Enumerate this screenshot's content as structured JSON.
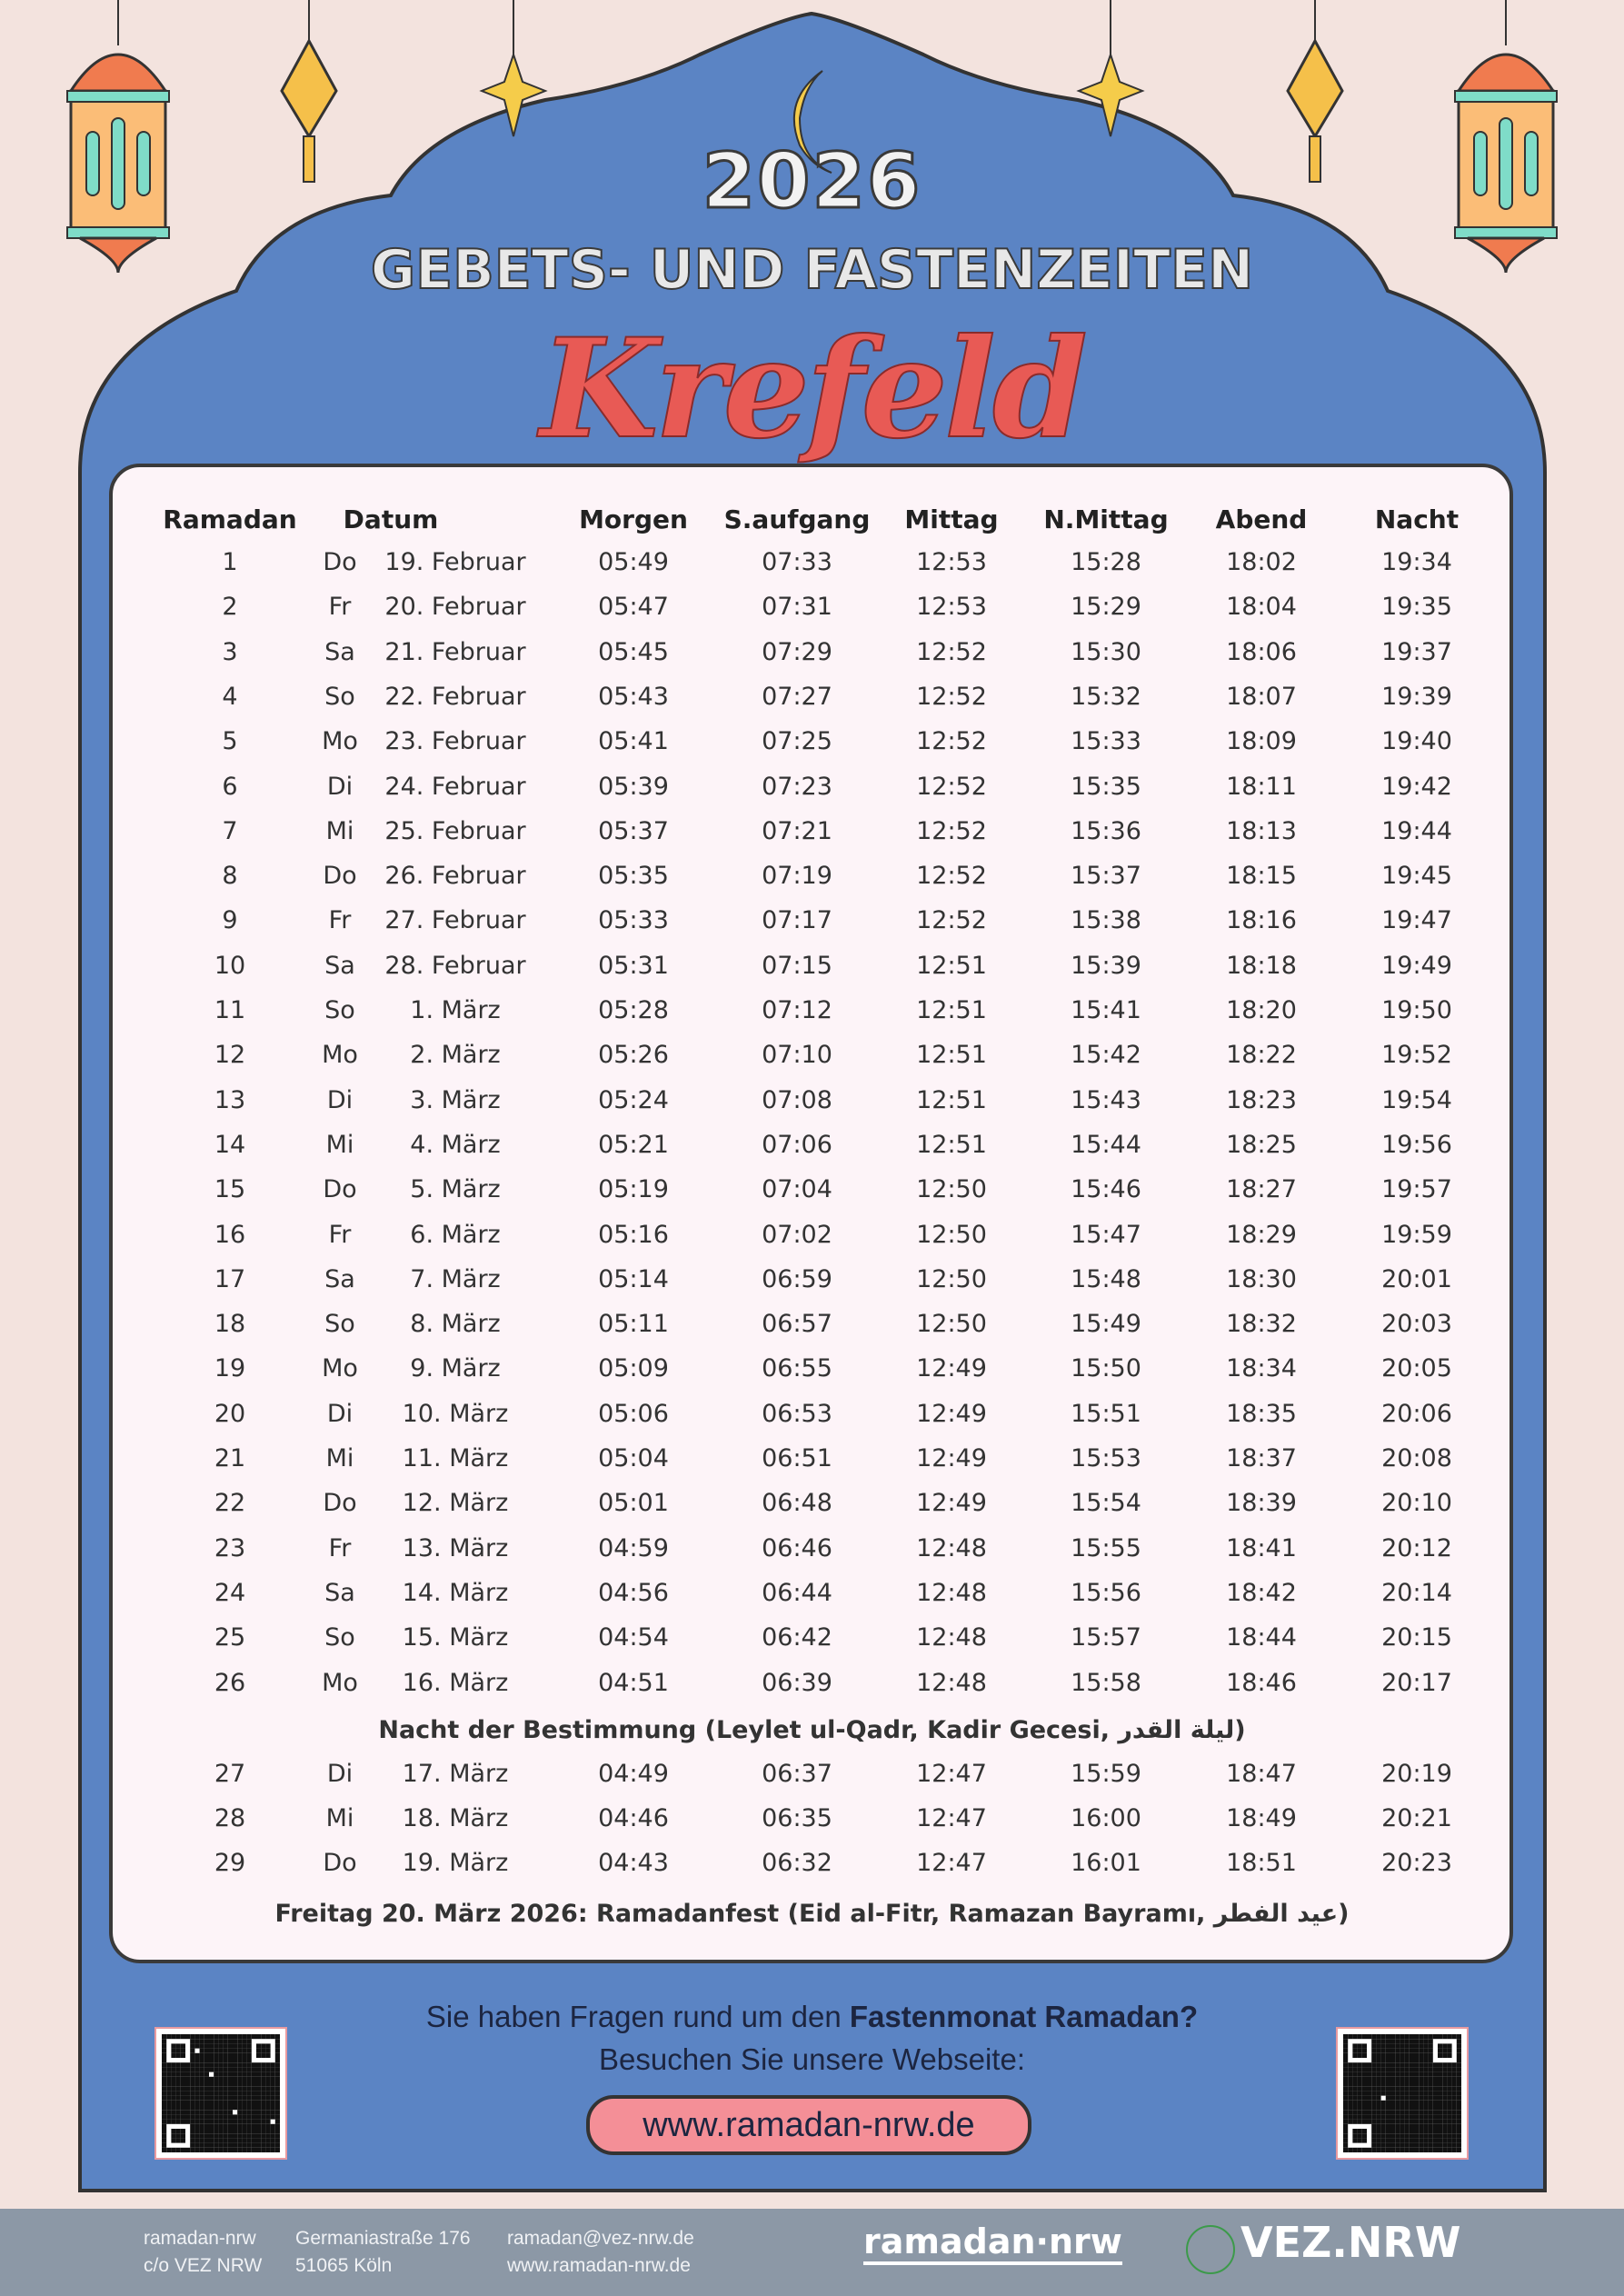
{
  "header": {
    "year": "2026",
    "title": "GEBETS- UND FASTENZEITEN",
    "city": "Krefeld"
  },
  "colors": {
    "background": "#f3e3de",
    "arch_blue": "#5b84c4",
    "city_red": "#e85a55",
    "url_button": "#f48f97",
    "footer": "#8c98a6"
  },
  "table": {
    "columns": [
      "Ramadan",
      "Datum",
      "Morgen",
      "S.aufgang",
      "Mittag",
      "N.Mittag",
      "Abend",
      "Nacht"
    ],
    "rows": [
      [
        "1",
        "Do",
        "19. Februar",
        "05:49",
        "07:33",
        "12:53",
        "15:28",
        "18:02",
        "19:34"
      ],
      [
        "2",
        "Fr",
        "20. Februar",
        "05:47",
        "07:31",
        "12:53",
        "15:29",
        "18:04",
        "19:35"
      ],
      [
        "3",
        "Sa",
        "21. Februar",
        "05:45",
        "07:29",
        "12:52",
        "15:30",
        "18:06",
        "19:37"
      ],
      [
        "4",
        "So",
        "22. Februar",
        "05:43",
        "07:27",
        "12:52",
        "15:32",
        "18:07",
        "19:39"
      ],
      [
        "5",
        "Mo",
        "23. Februar",
        "05:41",
        "07:25",
        "12:52",
        "15:33",
        "18:09",
        "19:40"
      ],
      [
        "6",
        "Di",
        "24. Februar",
        "05:39",
        "07:23",
        "12:52",
        "15:35",
        "18:11",
        "19:42"
      ],
      [
        "7",
        "Mi",
        "25. Februar",
        "05:37",
        "07:21",
        "12:52",
        "15:36",
        "18:13",
        "19:44"
      ],
      [
        "8",
        "Do",
        "26. Februar",
        "05:35",
        "07:19",
        "12:52",
        "15:37",
        "18:15",
        "19:45"
      ],
      [
        "9",
        "Fr",
        "27. Februar",
        "05:33",
        "07:17",
        "12:52",
        "15:38",
        "18:16",
        "19:47"
      ],
      [
        "10",
        "Sa",
        "28. Februar",
        "05:31",
        "07:15",
        "12:51",
        "15:39",
        "18:18",
        "19:49"
      ],
      [
        "11",
        "So",
        "1. März",
        "05:28",
        "07:12",
        "12:51",
        "15:41",
        "18:20",
        "19:50"
      ],
      [
        "12",
        "Mo",
        "2. März",
        "05:26",
        "07:10",
        "12:51",
        "15:42",
        "18:22",
        "19:52"
      ],
      [
        "13",
        "Di",
        "3. März",
        "05:24",
        "07:08",
        "12:51",
        "15:43",
        "18:23",
        "19:54"
      ],
      [
        "14",
        "Mi",
        "4. März",
        "05:21",
        "07:06",
        "12:51",
        "15:44",
        "18:25",
        "19:56"
      ],
      [
        "15",
        "Do",
        "5. März",
        "05:19",
        "07:04",
        "12:50",
        "15:46",
        "18:27",
        "19:57"
      ],
      [
        "16",
        "Fr",
        "6. März",
        "05:16",
        "07:02",
        "12:50",
        "15:47",
        "18:29",
        "19:59"
      ],
      [
        "17",
        "Sa",
        "7. März",
        "05:14",
        "06:59",
        "12:50",
        "15:48",
        "18:30",
        "20:01"
      ],
      [
        "18",
        "So",
        "8. März",
        "05:11",
        "06:57",
        "12:50",
        "15:49",
        "18:32",
        "20:03"
      ],
      [
        "19",
        "Mo",
        "9. März",
        "05:09",
        "06:55",
        "12:49",
        "15:50",
        "18:34",
        "20:05"
      ],
      [
        "20",
        "Di",
        "10. März",
        "05:06",
        "06:53",
        "12:49",
        "15:51",
        "18:35",
        "20:06"
      ],
      [
        "21",
        "Mi",
        "11. März",
        "05:04",
        "06:51",
        "12:49",
        "15:53",
        "18:37",
        "20:08"
      ],
      [
        "22",
        "Do",
        "12. März",
        "05:01",
        "06:48",
        "12:49",
        "15:54",
        "18:39",
        "20:10"
      ],
      [
        "23",
        "Fr",
        "13. März",
        "04:59",
        "06:46",
        "12:48",
        "15:55",
        "18:41",
        "20:12"
      ],
      [
        "24",
        "Sa",
        "14. März",
        "04:56",
        "06:44",
        "12:48",
        "15:56",
        "18:42",
        "20:14"
      ],
      [
        "25",
        "So",
        "15. März",
        "04:54",
        "06:42",
        "12:48",
        "15:57",
        "18:44",
        "20:15"
      ],
      [
        "26",
        "Mo",
        "16. März",
        "04:51",
        "06:39",
        "12:48",
        "15:58",
        "18:46",
        "20:17"
      ],
      [
        "27",
        "Di",
        "17. März",
        "04:49",
        "06:37",
        "12:47",
        "15:59",
        "18:47",
        "20:19"
      ],
      [
        "28",
        "Mi",
        "18. März",
        "04:46",
        "06:35",
        "12:47",
        "16:00",
        "18:49",
        "20:21"
      ],
      [
        "29",
        "Do",
        "19. März",
        "04:43",
        "06:32",
        "12:47",
        "16:01",
        "18:51",
        "20:23"
      ]
    ],
    "note_qadr": "Nacht der Bestimmung (Leylet ul-Qadr, Kadir Gecesi, ليلة القدر)",
    "note_eid": "Freitag 20. März 2026: Ramadanfest (Eid al-Fitr, Ramazan Bayramı, عيد الفطر)"
  },
  "info": {
    "question_prefix": "Sie haben Fragen rund um den ",
    "question_bold": "Fastenmonat Ramadan?",
    "visit": "Besuchen Sie unsere Webseite:",
    "url": "www.ramadan-nrw.de"
  },
  "footer": {
    "org_line1": "ramadan-nrw",
    "org_line2": "c/o VEZ NRW",
    "street": "Germaniastraße 176",
    "city": "51065 Köln",
    "email": "ramadan@vez-nrw.de",
    "website": "www.ramadan-nrw.de",
    "logo_ramadan": "ramadan·nrw",
    "logo_vez": "VEZ.NRW"
  }
}
